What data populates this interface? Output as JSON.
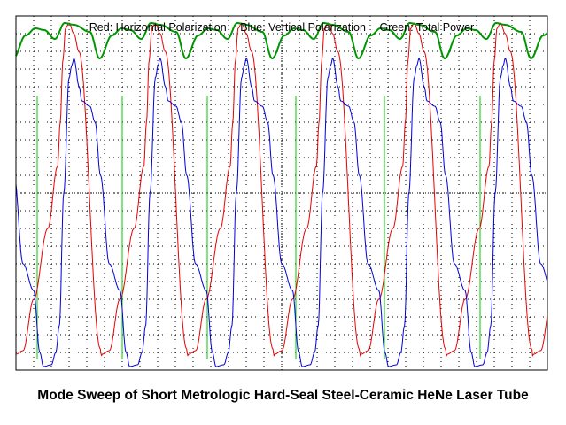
{
  "caption": "Mode Sweep of Short Metrologic Hard-Seal Steel-Ceramic HeNe Laser Tube",
  "legend": {
    "red": "Red: Horizontal Polarization",
    "blue": "Blue: Vertical Polarization",
    "green": "Green: Total Power"
  },
  "colors": {
    "background": "#ffffff",
    "border": "#000000",
    "grid_dots": "#000000",
    "red": "#e60000",
    "blue": "#0000d8",
    "green": "#009600",
    "marker": "#00c800"
  },
  "chart_data": {
    "type": "line",
    "title": "Mode Sweep of Short Metrologic Hard-Seal Steel-Ceramic HeNe Laser Tube",
    "xlabel": "",
    "ylabel": "",
    "grid": true,
    "grid_divisions": {
      "x": 30,
      "y": 20
    },
    "xlim": [
      0,
      30
    ],
    "ylim": [
      0,
      20
    ],
    "legend_placement": "top-center",
    "period_divisions": 4.87,
    "series": [
      {
        "name": "Red: Horizontal Polarization",
        "color": "red",
        "phase_points": [
          [
            0.0,
            19.0
          ],
          [
            0.28,
            18.0
          ],
          [
            1.5,
            1.2
          ],
          [
            1.55,
            0.8
          ],
          [
            1.6,
            0.9
          ],
          [
            2.0,
            1.1
          ],
          [
            2.6,
            4.0
          ],
          [
            3.4,
            8.0
          ],
          [
            3.95,
            11.5
          ],
          [
            4.1,
            14.0
          ],
          [
            4.25,
            17.5
          ],
          [
            4.4,
            19.3
          ],
          [
            4.6,
            19.6
          ],
          [
            4.87,
            19.0
          ]
        ]
      },
      {
        "name": "Blue: Vertical Polarization",
        "color": "blue",
        "phase_points": [
          [
            0.0,
            17.6
          ],
          [
            0.3,
            16.0
          ],
          [
            0.45,
            15.2
          ],
          [
            0.9,
            14.9
          ],
          [
            1.2,
            14.0
          ],
          [
            1.5,
            11.0
          ],
          [
            2.0,
            6.0
          ],
          [
            2.6,
            4.5
          ],
          [
            2.95,
            1.0
          ],
          [
            3.15,
            0.2
          ],
          [
            3.6,
            0.3
          ],
          [
            3.85,
            1.0
          ],
          [
            4.05,
            2.5
          ],
          [
            4.3,
            10.0
          ],
          [
            4.6,
            16.5
          ],
          [
            4.75,
            17.2
          ],
          [
            4.87,
            17.6
          ]
        ]
      },
      {
        "name": "Green: Total Power",
        "color": "green",
        "phase_points": [
          [
            0.0,
            19.5
          ],
          [
            0.9,
            19.1
          ],
          [
            1.45,
            17.6
          ],
          [
            2.15,
            18.9
          ],
          [
            2.7,
            19.3
          ],
          [
            3.2,
            19.2
          ],
          [
            3.8,
            18.7
          ],
          [
            4.35,
            19.6
          ],
          [
            4.87,
            19.5
          ]
        ]
      }
    ],
    "phase_offset_divisions": -1.6,
    "mode_markers_divisions": [
      1.2,
      6.0,
      10.8,
      15.8,
      20.8,
      26.2
    ]
  }
}
